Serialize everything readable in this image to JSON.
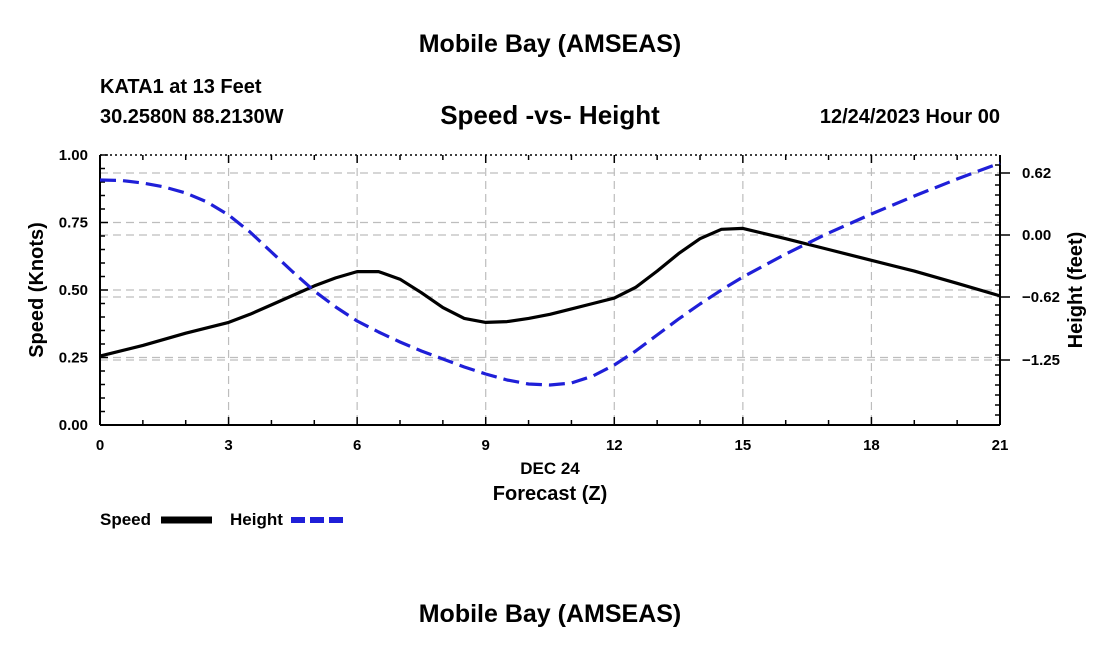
{
  "header": {
    "title": "Mobile Bay (AMSEAS)",
    "station": "KATA1 at 13 Feet",
    "coordinates": "30.2580N  88.2130W",
    "subtitle": "Speed -vs- Height",
    "datetime": "12/24/2023 Hour 00"
  },
  "footer": {
    "title": "Mobile Bay (AMSEAS)"
  },
  "chart_data": {
    "type": "line",
    "title": "Speed -vs- Height",
    "xlabel": "Forecast (Z)",
    "xdate_label": "DEC 24",
    "xlim": [
      0,
      21
    ],
    "xticks": [
      0,
      3,
      6,
      9,
      12,
      15,
      18,
      21
    ],
    "xtick_labels": [
      "0",
      "3",
      "6",
      "9",
      "12",
      "15",
      "18",
      "21"
    ],
    "ylabel_left": "Speed (Knots)",
    "ylim_left": [
      0,
      1
    ],
    "yticks_left": [
      0,
      0.25,
      0.5,
      0.75,
      1.0
    ],
    "ytick_labels_left": [
      "0.00",
      "0.25",
      "0.50",
      "0.75",
      "1.00"
    ],
    "ylabel_right": "Height (feet)",
    "ylim_right": [
      -1.9,
      0.8
    ],
    "yticks_right": [
      -1.25,
      -0.62,
      0.0,
      0.62
    ],
    "ytick_labels_right": [
      "−1.25",
      "−0.62",
      "0.00",
      "0.62"
    ],
    "grid": true,
    "legend_position": "bottom-left",
    "series": [
      {
        "name": "Speed",
        "axis": "left",
        "color": "#000000",
        "style": "solid",
        "x": [
          0,
          1,
          2,
          3,
          3.5,
          4,
          4.5,
          5,
          5.5,
          6,
          6.5,
          7,
          7.5,
          8,
          8.5,
          9,
          9.5,
          10,
          10.5,
          11,
          11.5,
          12,
          12.5,
          13,
          13.5,
          14,
          14.5,
          15,
          16,
          17,
          18,
          19,
          20,
          21
        ],
        "values": [
          0.255,
          0.295,
          0.34,
          0.38,
          0.41,
          0.445,
          0.48,
          0.515,
          0.545,
          0.568,
          0.568,
          0.54,
          0.49,
          0.435,
          0.395,
          0.38,
          0.383,
          0.395,
          0.41,
          0.43,
          0.45,
          0.47,
          0.51,
          0.57,
          0.635,
          0.69,
          0.725,
          0.728,
          0.69,
          0.65,
          0.61,
          0.57,
          0.525,
          0.478
        ]
      },
      {
        "name": "Height",
        "axis": "right",
        "color": "#1f1fd8",
        "style": "dashed",
        "x": [
          0,
          0.5,
          1,
          1.5,
          2,
          2.5,
          3,
          3.5,
          4,
          4.5,
          5,
          5.5,
          6,
          6.5,
          7,
          7.5,
          8,
          8.5,
          9,
          9.5,
          10,
          10.5,
          11,
          11.5,
          12,
          12.5,
          13,
          13.5,
          14,
          14.5,
          15,
          16,
          17,
          18,
          19,
          20,
          21
        ],
        "values": [
          0.55,
          0.545,
          0.52,
          0.48,
          0.42,
          0.33,
          0.2,
          0.03,
          -0.17,
          -0.37,
          -0.56,
          -0.72,
          -0.86,
          -0.97,
          -1.07,
          -1.16,
          -1.24,
          -1.32,
          -1.39,
          -1.45,
          -1.49,
          -1.5,
          -1.48,
          -1.41,
          -1.3,
          -1.16,
          -1.0,
          -0.84,
          -0.69,
          -0.55,
          -0.42,
          -0.19,
          0.02,
          0.21,
          0.39,
          0.56,
          0.72
        ]
      }
    ]
  }
}
